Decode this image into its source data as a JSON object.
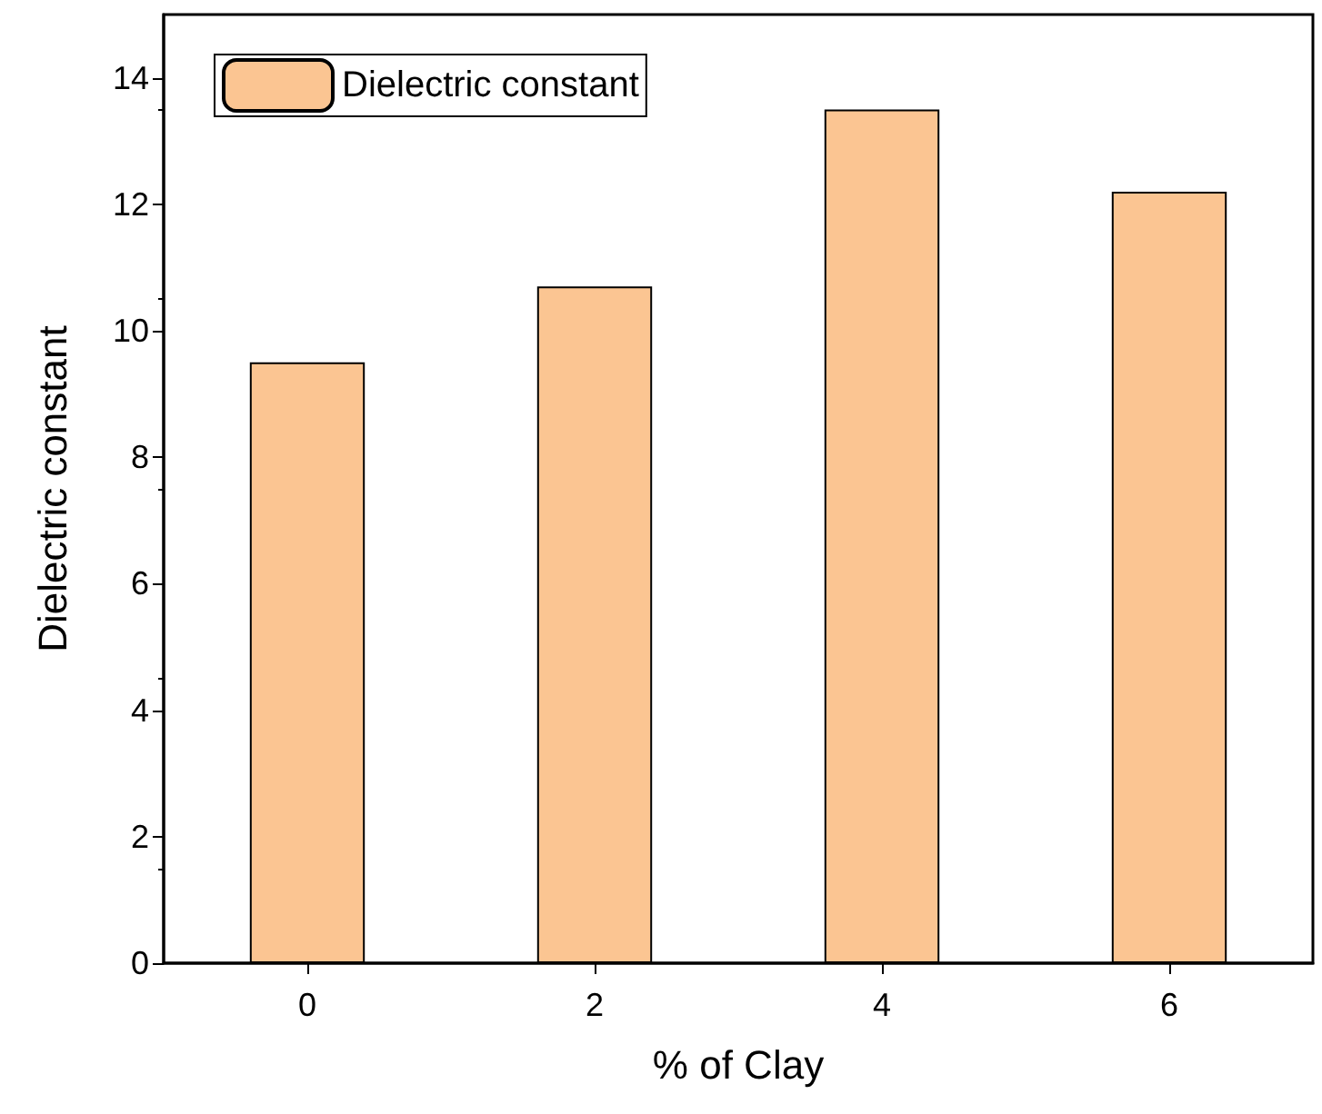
{
  "chart_data": {
    "type": "bar",
    "xlabel": "% of Clay",
    "ylabel": "Dielectric constant",
    "categories": [
      "0",
      "2",
      "4",
      "6"
    ],
    "series": [
      {
        "name": "Dielectric constant",
        "color": "#fbc592",
        "values": [
          9.5,
          10.7,
          13.5,
          12.2
        ]
      }
    ],
    "ylim": [
      0,
      15
    ],
    "yticks": [
      0,
      2,
      4,
      6,
      8,
      10,
      12,
      14
    ],
    "grid": false,
    "legend": "top left"
  }
}
